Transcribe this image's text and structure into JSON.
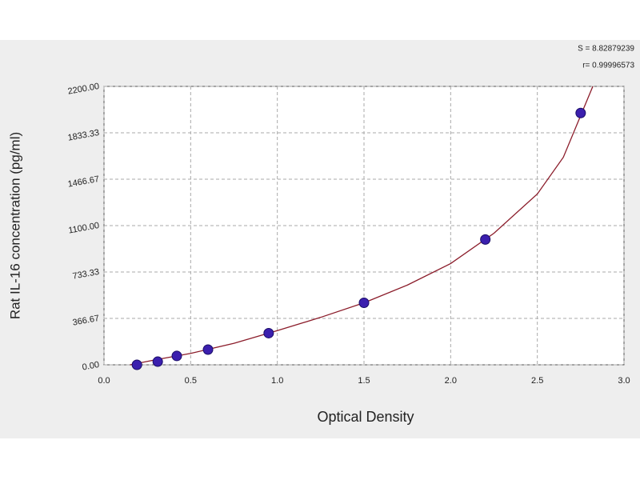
{
  "chart_data": {
    "type": "scatter",
    "x_label": "Optical Density",
    "y_label": "Rat IL-16 concentration (pg/ml)",
    "annotations": [
      "S = 8.82879239",
      "r= 0.99996573"
    ],
    "xlim": [
      0,
      3
    ],
    "ylim": [
      0,
      2200
    ],
    "xticks": [
      {
        "value": 0,
        "label": "0.0"
      },
      {
        "value": 0.5,
        "label": "0.5"
      },
      {
        "value": 1,
        "label": "1.0"
      },
      {
        "value": 1.5,
        "label": "1.5"
      },
      {
        "value": 2,
        "label": "2.0"
      },
      {
        "value": 2.5,
        "label": "2.5"
      },
      {
        "value": 3,
        "label": "3.0"
      }
    ],
    "yticks": [
      {
        "value": 0,
        "label": "0.00"
      },
      {
        "value": 366.67,
        "label": "366.67"
      },
      {
        "value": 733.33,
        "label": "733.33"
      },
      {
        "value": 1100,
        "label": "1100.00"
      },
      {
        "value": 1466.67,
        "label": "1466.67"
      },
      {
        "value": 1833.33,
        "label": "1833.33"
      },
      {
        "value": 2200,
        "label": "2200.00"
      }
    ],
    "grid": true,
    "points": {
      "color": "#3b1fae",
      "x": [
        0.19,
        0.31,
        0.42,
        0.6,
        0.95,
        1.5,
        2.2,
        2.75
      ],
      "values": [
        0,
        25,
        70,
        120,
        250,
        490,
        990,
        1990
      ]
    },
    "fit": {
      "color": "#8b1c2a",
      "x": [
        0.15,
        0.3,
        0.5,
        0.75,
        1.0,
        1.25,
        1.5,
        1.75,
        2.0,
        2.25,
        2.5,
        2.65,
        2.82
      ],
      "values": [
        0,
        40,
        90,
        170,
        270,
        375,
        490,
        630,
        800,
        1040,
        1350,
        1640,
        2200
      ]
    }
  }
}
